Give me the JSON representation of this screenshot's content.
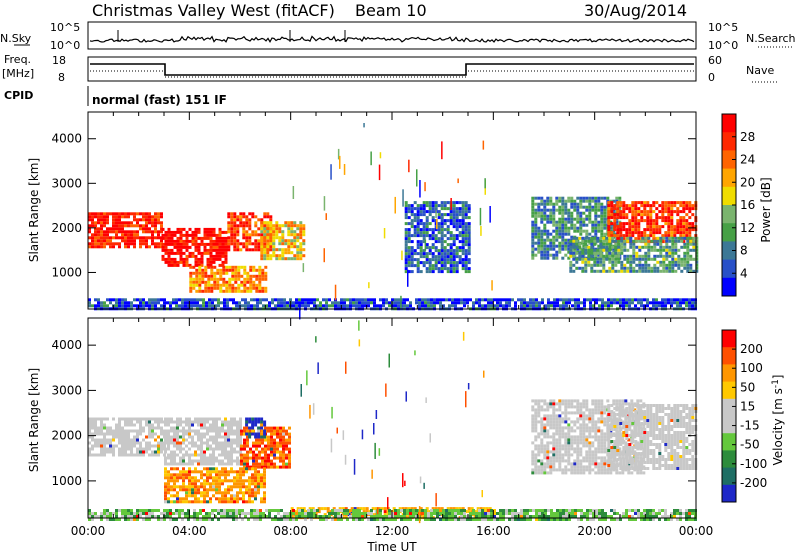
{
  "header": {
    "station": "Christmas Valley West (fitACF)",
    "beam": "Beam 10",
    "date": "30/Aug/2014"
  },
  "strip_labels": {
    "nsky": "N.Sky",
    "nsearch": "N.Search",
    "freq": "Freq.",
    "freq_unit": "[MHz]",
    "nave": "Nave",
    "cpid": "CPID",
    "cpid_value": "normal (fast) 151 IF",
    "noise_ticks": [
      "10^5",
      "10^0"
    ],
    "freq_ticks": [
      "18",
      "8"
    ],
    "nave_ticks": [
      "60",
      "0"
    ]
  },
  "colors": {
    "power_scale": [
      "#0000ff",
      "#2850c8",
      "#3c7896",
      "#46a046",
      "#7ab46e",
      "#f0dc00",
      "#ffa500",
      "#ff6400",
      "#ff2800",
      "#ff0000"
    ],
    "velocity_scale": [
      "#1e28c8",
      "#1e6e64",
      "#2d8c3c",
      "#64c83c",
      "#c8c8c8",
      "#c8c8c8",
      "#ffc800",
      "#ff9600",
      "#ff5000",
      "#ff0000"
    ]
  },
  "chart_data": [
    {
      "type": "heatmap",
      "name": "power",
      "xlabel": "",
      "ylabel": "Slant Range [km]",
      "xlim": [
        0,
        24
      ],
      "ylim": [
        180,
        4600
      ],
      "yticks": [
        "1000",
        "2000",
        "3000",
        "4000"
      ],
      "colorbar_label": "Power [dB]",
      "colorbar_ticks": [
        "28",
        "24",
        "20",
        "16",
        "12",
        "8",
        "4"
      ],
      "regions": [
        {
          "x0": 0.0,
          "x1": 2.9,
          "y0": 1600,
          "y1": 2350,
          "level": 0.9
        },
        {
          "x0": 2.9,
          "x1": 5.5,
          "y0": 1150,
          "y1": 2000,
          "level": 0.95
        },
        {
          "x0": 5.5,
          "x1": 7.2,
          "y0": 1500,
          "y1": 2350,
          "level": 0.85
        },
        {
          "x0": 6.8,
          "x1": 8.5,
          "y0": 1300,
          "y1": 2150,
          "level": 0.6
        },
        {
          "x0": 4.0,
          "x1": 7.0,
          "y0": 550,
          "y1": 1150,
          "level": 0.7
        },
        {
          "x0": 0.0,
          "x1": 24.0,
          "y0": 180,
          "y1": 420,
          "level": 0.15
        },
        {
          "x0": 17.5,
          "x1": 21.0,
          "y0": 1300,
          "y1": 2700,
          "level": 0.3
        },
        {
          "x0": 20.5,
          "x1": 24.0,
          "y0": 1700,
          "y1": 2600,
          "level": 0.85
        },
        {
          "x0": 19.0,
          "x1": 24.0,
          "y0": 1000,
          "y1": 1800,
          "level": 0.35
        },
        {
          "x0": 12.5,
          "x1": 15.0,
          "y0": 1050,
          "y1": 2600,
          "level": 0.2
        }
      ]
    },
    {
      "type": "heatmap",
      "name": "velocity",
      "xlabel": "Time UT",
      "ylabel": "Slant Range [km]",
      "xlim": [
        0,
        24
      ],
      "ylim": [
        180,
        4600
      ],
      "yticks": [
        "1000",
        "2000",
        "3000",
        "4000"
      ],
      "xticks": [
        "00:00",
        "04:00",
        "08:00",
        "12:00",
        "16:00",
        "20:00",
        "00:00"
      ],
      "colorbar_label": "Velocity [m s^-1]",
      "colorbar_ticks": [
        "200",
        "100",
        "50",
        "15",
        "-15",
        "-50",
        "-100",
        "-200"
      ],
      "regions": [
        {
          "x0": 0.0,
          "x1": 3.0,
          "y0": 1600,
          "y1": 2400,
          "level": 0.5
        },
        {
          "x0": 3.0,
          "x1": 6.0,
          "y0": 1400,
          "y1": 2400,
          "level": 0.5
        },
        {
          "x0": 6.0,
          "x1": 8.0,
          "y0": 1300,
          "y1": 2200,
          "level": 0.85
        },
        {
          "x0": 6.2,
          "x1": 7.0,
          "y0": 1950,
          "y1": 2400,
          "level": 0.05
        },
        {
          "x0": 3.0,
          "x1": 7.0,
          "y0": 550,
          "y1": 1300,
          "level": 0.75
        },
        {
          "x0": 8.0,
          "x1": 16.0,
          "y0": 180,
          "y1": 420,
          "level": 0.7
        },
        {
          "x0": 0.0,
          "x1": 24.0,
          "y0": 180,
          "y1": 380,
          "level": 0.35
        },
        {
          "x0": 17.5,
          "x1": 22.0,
          "y0": 1200,
          "y1": 2800,
          "level": 0.5
        },
        {
          "x0": 20.5,
          "x1": 24.0,
          "y0": 1300,
          "y1": 2700,
          "level": 0.5
        }
      ]
    }
  ]
}
